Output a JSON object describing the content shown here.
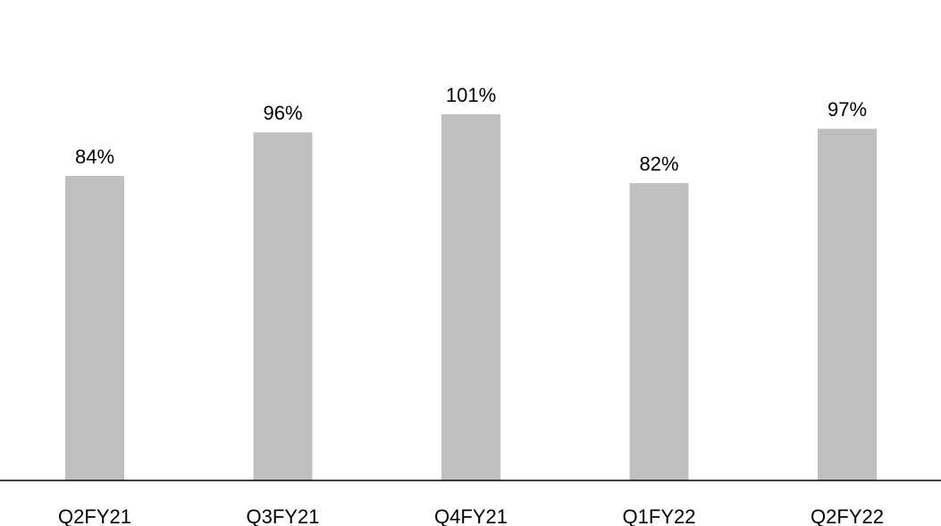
{
  "chart_data": {
    "type": "bar",
    "categories": [
      "Q2FY21",
      "Q3FY21",
      "Q4FY21",
      "Q1FY22",
      "Q2FY22"
    ],
    "values": [
      84,
      96,
      101,
      82,
      97
    ],
    "data_labels": [
      "84%",
      "96%",
      "101%",
      "82%",
      "97%"
    ],
    "title": "",
    "xlabel": "",
    "ylabel": "",
    "ylim": [
      0,
      105
    ],
    "grid": false,
    "legend": "none",
    "bar_color": "#bfbfbf",
    "axis_color": "#000000"
  }
}
